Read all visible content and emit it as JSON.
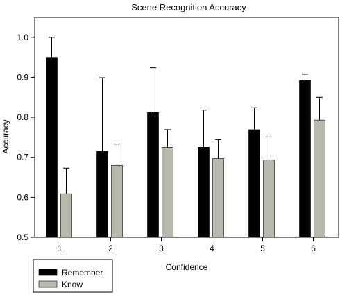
{
  "chart_data": {
    "type": "bar",
    "title": "Scene Recognition Accuracy",
    "xlabel": "Confidence",
    "ylabel": "Accuracy",
    "categories": [
      "1",
      "2",
      "3",
      "4",
      "5",
      "6"
    ],
    "ylim": [
      0.5,
      1.05
    ],
    "yticks": [
      "0.5",
      "0.6",
      "0.7",
      "0.8",
      "0.9",
      "1.0"
    ],
    "grid": false,
    "legend_position": "bottom-left, below axes",
    "series": [
      {
        "name": "Remember",
        "color": "#000000",
        "values": [
          0.95,
          0.715,
          0.812,
          0.725,
          0.769,
          0.892
        ],
        "error_upper": [
          1.0,
          0.899,
          0.924,
          0.818,
          0.824,
          0.908
        ]
      },
      {
        "name": "Know",
        "color": "#b8b8ad",
        "values": [
          0.609,
          0.68,
          0.725,
          0.697,
          0.693,
          0.793
        ],
        "error_upper": [
          0.673,
          0.733,
          0.769,
          0.744,
          0.751,
          0.85
        ]
      }
    ]
  }
}
